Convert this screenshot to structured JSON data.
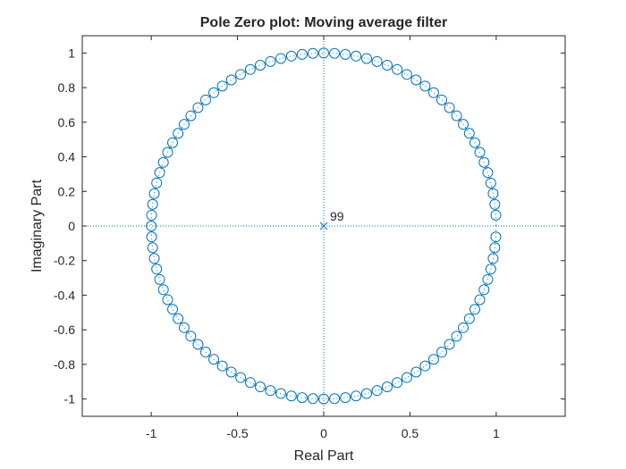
{
  "chart_data": {
    "type": "scatter",
    "title": "Pole Zero plot: Moving average filter",
    "xlabel": "Real Part",
    "ylabel": "Imaginary Part",
    "xlim": [
      -1.4,
      1.4
    ],
    "ylim": [
      -1.1,
      1.1
    ],
    "xticks": [
      -1,
      -0.5,
      0,
      0.5,
      1
    ],
    "xtick_labels": [
      "-1",
      "-0.5",
      "0",
      "0.5",
      "1"
    ],
    "yticks": [
      1,
      0.8,
      0.6,
      0.4,
      0.2,
      0,
      -0.2,
      -0.4,
      -0.6,
      -0.8,
      -1
    ],
    "ytick_labels": [
      "1",
      "0.8",
      "0.6",
      "0.4",
      "0.2",
      "0",
      "-0.2",
      "-0.4",
      "-0.6",
      "-0.8",
      "-1"
    ],
    "grid": false,
    "series": [
      {
        "marker": "o",
        "filter_length": 100,
        "description_values": "zeros at exp(j*2*pi*k/100), k = 1..99 (point at angle 0 excluded)"
      },
      {
        "marker": "x",
        "x": [
          0
        ],
        "y": [
          0
        ],
        "multiplicity": "99"
      }
    ],
    "unit_circle_style": "dotted",
    "color": "#0072bd"
  }
}
